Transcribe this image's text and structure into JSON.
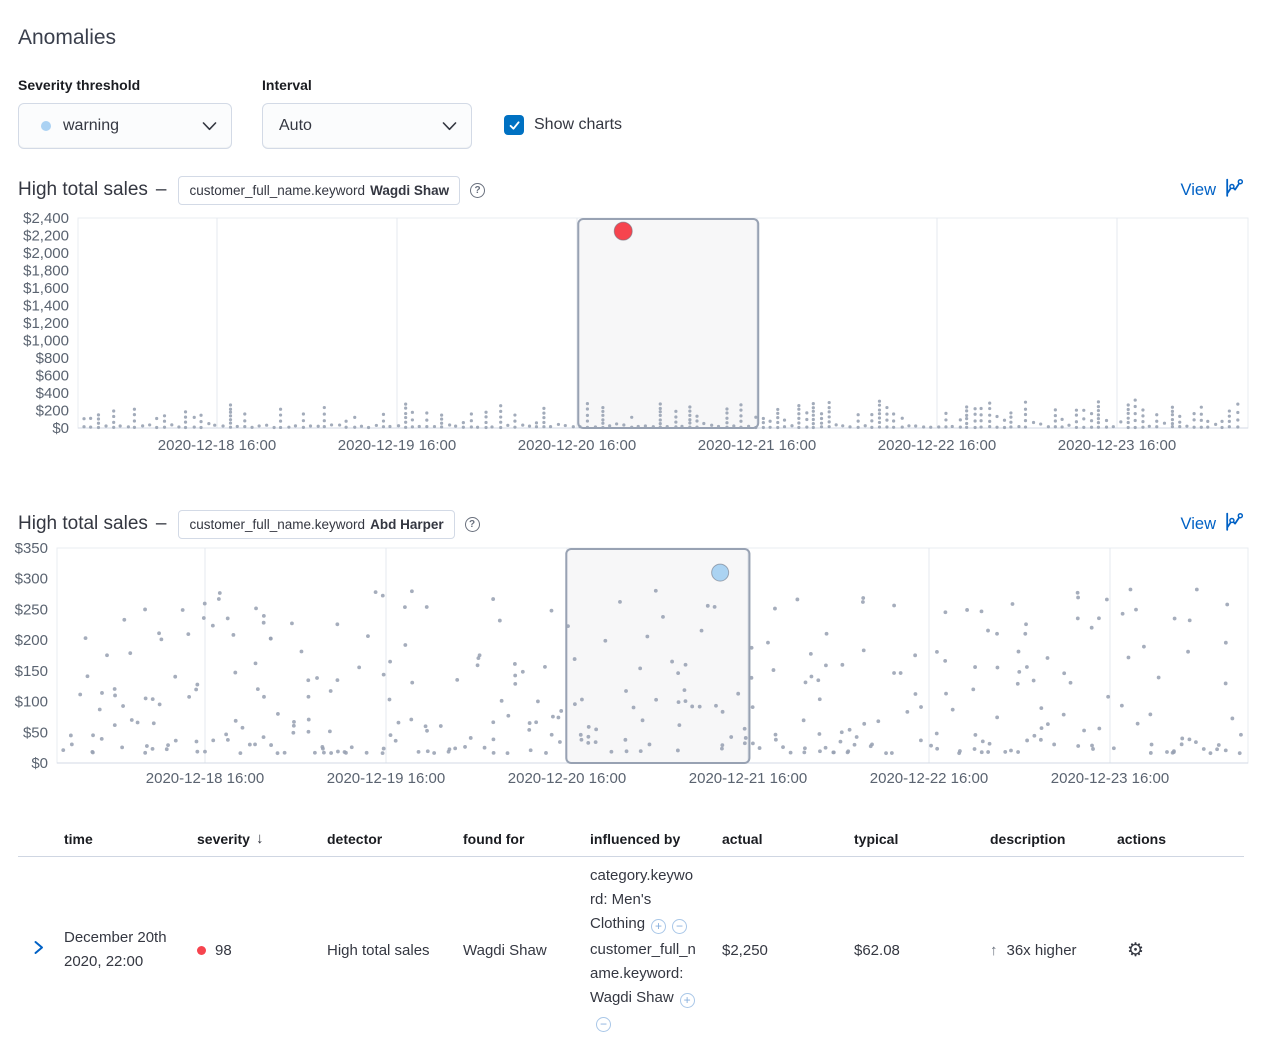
{
  "page": {
    "title": "Anomalies"
  },
  "controls": {
    "severity": {
      "label": "Severity threshold",
      "value": "warning",
      "dot_color": "#abd2f3"
    },
    "interval": {
      "label": "Interval",
      "value": "Auto"
    },
    "show_charts": {
      "label": "Show charts",
      "checked": true
    }
  },
  "charts": [
    {
      "title": "High total sales",
      "separator": "–",
      "badge_field": "customer_full_name.keyword",
      "badge_value": "Wagdi Shaw",
      "view_label": "View"
    },
    {
      "title": "High total sales",
      "separator": "–",
      "badge_field": "customer_full_name.keyword",
      "badge_value": "Abd Harper",
      "view_label": "View"
    }
  ],
  "chart_data": [
    {
      "type": "scatter",
      "title": "High total sales – customer_full_name.keyword Wagdi Shaw",
      "ylim": [
        0,
        2400
      ],
      "y_ticks": [
        "$2,400",
        "$2,200",
        "$2,000",
        "$1,800",
        "$1,600",
        "$1,400",
        "$1,200",
        "$1,000",
        "$800",
        "$600",
        "$400",
        "$200",
        "$0"
      ],
      "x_ticks": [
        "2020-12-18 16:00",
        "2020-12-19 16:00",
        "2020-12-20 16:00",
        "2020-12-21 16:00",
        "2020-12-22 16:00",
        "2020-12-23 16:00"
      ],
      "grid": "vertical-only",
      "legend": false,
      "point_color": "#98a2b3",
      "typical_value_range": [
        10,
        300
      ],
      "selection": {
        "from": "2020-12-20 16:00",
        "to": "2020-12-21 16:00",
        "x_fraction_range": [
          0.4276,
          0.5814
        ]
      },
      "anomalies": [
        {
          "time": "2020-12-20 22:00",
          "value": 2250,
          "severity": "critical",
          "color": "#f6444e",
          "x_fraction": 0.466
        }
      ],
      "seed": 11
    },
    {
      "type": "scatter",
      "title": "High total sales – customer_full_name.keyword Abd Harper",
      "ylim": [
        0,
        350
      ],
      "y_ticks": [
        "$350",
        "$300",
        "$250",
        "$200",
        "$150",
        "$100",
        "$50",
        "$0"
      ],
      "x_ticks": [
        "2020-12-18 16:00",
        "2020-12-19 16:00",
        "2020-12-20 16:00",
        "2020-12-21 16:00",
        "2020-12-22 16:00",
        "2020-12-23 16:00"
      ],
      "grid": "vertical-only",
      "legend": false,
      "point_color": "#98a2b3",
      "typical_value_range": [
        15,
        280
      ],
      "selection": {
        "from": "2020-12-20 16:00",
        "to": "2020-12-21 16:00",
        "x_fraction_range": [
          0.4276,
          0.5814
        ]
      },
      "anomalies": [
        {
          "time": "2020-12-21 12:00",
          "value": 310,
          "severity": "warning",
          "color": "#abd3f2",
          "x_fraction": 0.5568
        }
      ],
      "seed": 29
    }
  ],
  "table": {
    "columns": [
      {
        "label": "time"
      },
      {
        "label": "severity",
        "sorted": "desc"
      },
      {
        "label": "detector"
      },
      {
        "label": "found for"
      },
      {
        "label": "influenced by"
      },
      {
        "label": "actual"
      },
      {
        "label": "typical"
      },
      {
        "label": "description"
      },
      {
        "label": "actions"
      }
    ],
    "rows": [
      {
        "time": "December 20th 2020, 22:00",
        "severity": "98",
        "severity_color": "#f6444e",
        "detector": "High total sales",
        "found_for": "Wagdi Shaw",
        "influencers": [
          {
            "text": "category.keyword: Men's Clothing"
          },
          {
            "text": "customer_full_name.keyword: Wagdi Shaw"
          }
        ],
        "actual": "$2,250",
        "typical": "$62.08",
        "description": "36x higher",
        "description_direction": "up"
      }
    ]
  }
}
